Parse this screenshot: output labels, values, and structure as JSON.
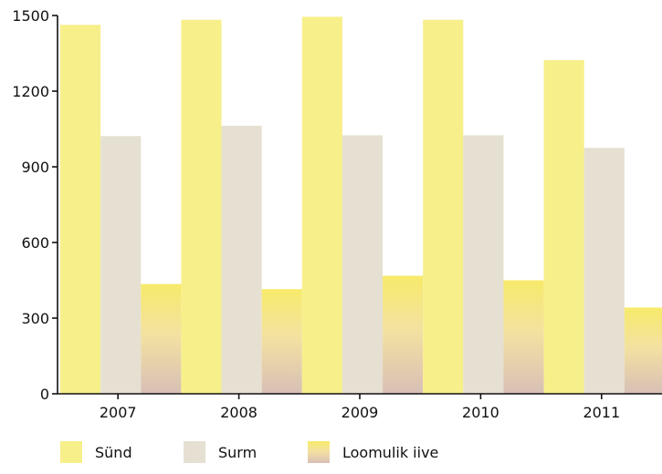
{
  "chart_data": {
    "type": "bar",
    "title": "",
    "xlabel": "",
    "ylabel": "",
    "categories": [
      "2007",
      "2008",
      "2009",
      "2010",
      "2011"
    ],
    "ylim": [
      0,
      1500
    ],
    "y_ticks": [
      0,
      300,
      600,
      900,
      1200,
      1500
    ],
    "grid": false,
    "legend_position": "bottom-left",
    "series": [
      {
        "name": "Sünd",
        "values": [
          1463,
          1483,
          1495,
          1483,
          1323
        ],
        "color": "#f7ef8a"
      },
      {
        "name": "Surm",
        "values": [
          1022,
          1063,
          1025,
          1025,
          975
        ],
        "color": "#e5e0d1"
      },
      {
        "name": "Loomulik iive",
        "values": [
          435,
          415,
          468,
          450,
          342
        ],
        "color": "#f7ea6a",
        "gradient_to": "#d8bfb6"
      }
    ]
  }
}
